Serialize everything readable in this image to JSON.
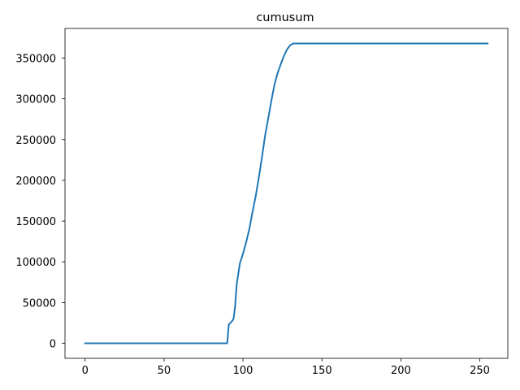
{
  "chart_data": {
    "type": "line",
    "title": "cumusum",
    "xlabel": "",
    "ylabel": "",
    "xlim": [
      -12.75,
      267.75
    ],
    "ylim": [
      -18400,
      386400
    ],
    "xticks": [
      0,
      50,
      100,
      150,
      200,
      250
    ],
    "yticks": [
      0,
      50000,
      100000,
      150000,
      200000,
      250000,
      300000,
      350000
    ],
    "grid": false,
    "series": [
      {
        "color": "#1f77b4",
        "x": [
          0,
          90,
          91,
          93,
          94,
          95,
          96,
          98,
          100,
          102,
          104,
          106,
          108,
          110,
          112,
          114,
          116,
          118,
          120,
          122,
          124,
          126,
          128,
          130,
          132,
          134,
          135,
          150,
          200,
          255
        ],
        "y": [
          0,
          0,
          23000,
          27000,
          30000,
          45000,
          72000,
          98000,
          110000,
          124000,
          140000,
          161000,
          180000,
          203000,
          228000,
          255000,
          276000,
          298000,
          318000,
          332000,
          343000,
          353000,
          361000,
          366000,
          368000,
          368000,
          368000,
          368000,
          368000,
          368000
        ]
      }
    ]
  }
}
